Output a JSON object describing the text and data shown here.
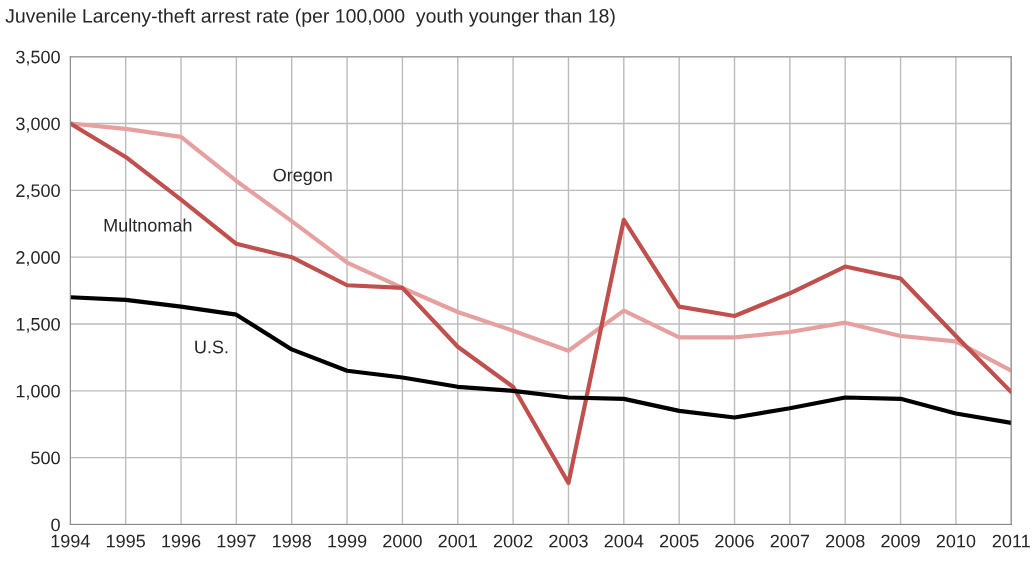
{
  "chart_data": {
    "type": "line",
    "title": "Juvenile Larceny-theft arrest rate (per 100,000  youth younger than 18)",
    "x": [
      1994,
      1995,
      1996,
      1997,
      1998,
      1999,
      2000,
      2001,
      2002,
      2003,
      2004,
      2005,
      2006,
      2007,
      2008,
      2009,
      2010,
      2011
    ],
    "series": [
      {
        "name": "Oregon",
        "color": "#e6a0a0",
        "values": [
          3000,
          2960,
          2900,
          2570,
          2270,
          1960,
          1770,
          1590,
          1450,
          1300,
          1600,
          1400,
          1400,
          1440,
          1510,
          1410,
          1370,
          1150
        ]
      },
      {
        "name": "Multnomah",
        "color": "#c0504d",
        "values": [
          3000,
          2750,
          2430,
          2100,
          2000,
          1790,
          1770,
          1330,
          1030,
          310,
          2280,
          1630,
          1560,
          1730,
          1930,
          1840,
          1410,
          990
        ]
      },
      {
        "name": "U.S.",
        "color": "#000000",
        "values": [
          1700,
          1680,
          1630,
          1570,
          1310,
          1150,
          1100,
          1030,
          1000,
          950,
          940,
          850,
          800,
          870,
          950,
          940,
          830,
          760
        ]
      }
    ],
    "xlim": [
      1994,
      2011
    ],
    "xticks": [
      1994,
      1995,
      1996,
      1997,
      1998,
      1999,
      2000,
      2001,
      2002,
      2003,
      2004,
      2005,
      2006,
      2007,
      2008,
      2009,
      2010,
      2011
    ],
    "ylim": [
      0,
      3500
    ],
    "yticks": [
      {
        "value": 0,
        "label": "0"
      },
      {
        "value": 500,
        "label": "500"
      },
      {
        "value": 1000,
        "label": "1,000"
      },
      {
        "value": 1500,
        "label": "1,500"
      },
      {
        "value": 2000,
        "label": "2,000"
      },
      {
        "value": 2500,
        "label": "2,500"
      },
      {
        "value": 3000,
        "label": "3,000"
      },
      {
        "value": 3500,
        "label": "3,500"
      }
    ],
    "grid": true,
    "legend": false
  }
}
